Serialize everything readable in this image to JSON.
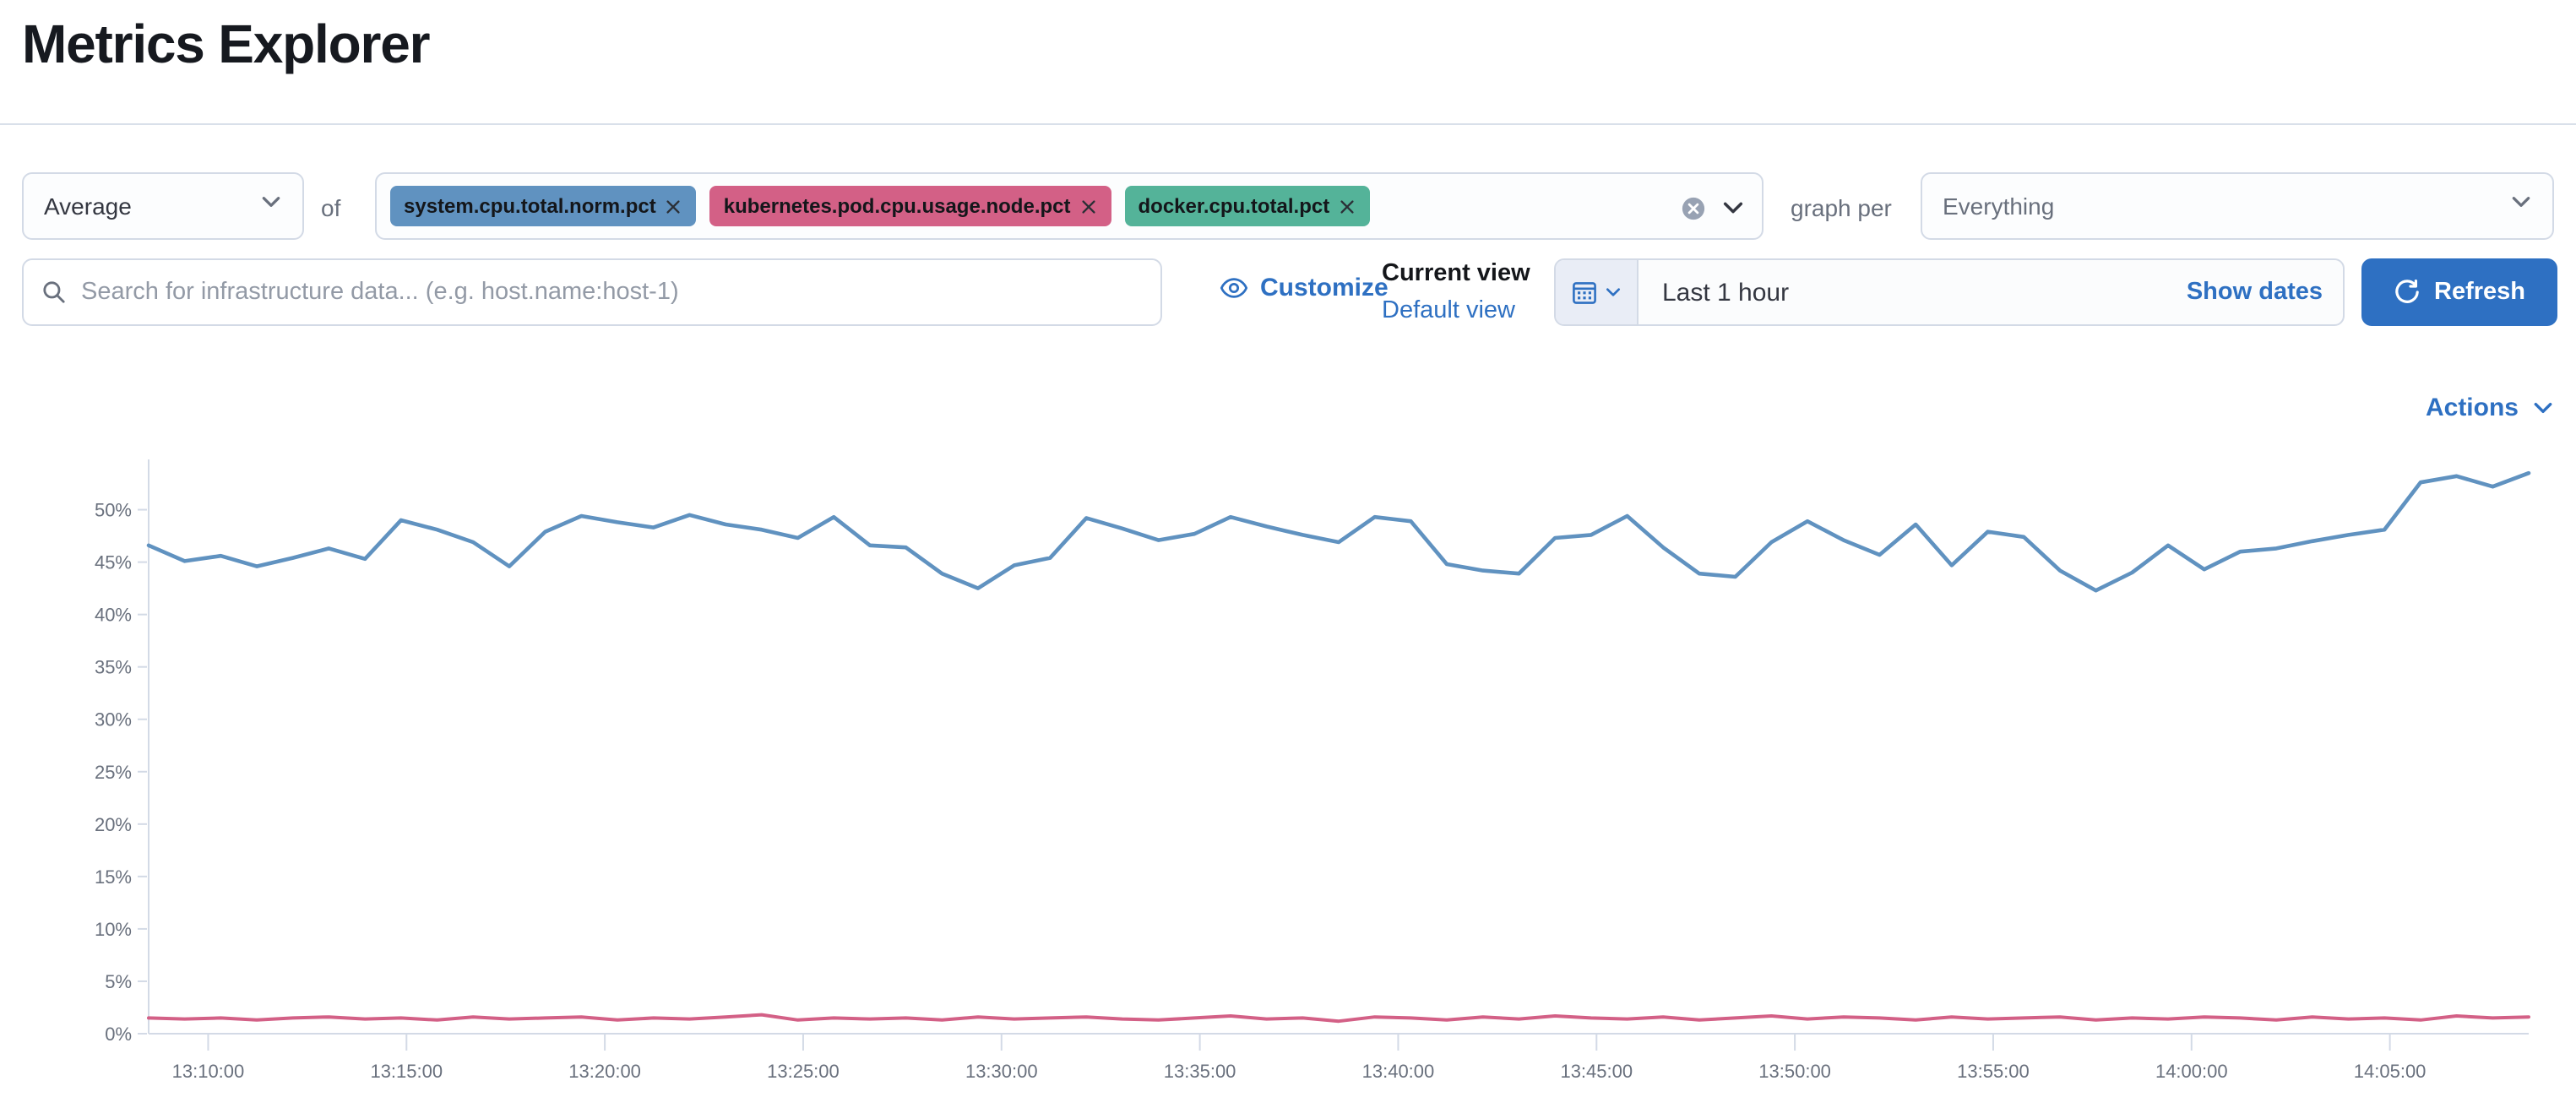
{
  "page": {
    "title": "Metrics Explorer"
  },
  "toolbar": {
    "aggregation_value": "Average",
    "of_label": "of",
    "metrics": [
      {
        "label": "system.cpu.total.norm.pct",
        "color": "#6092c0"
      },
      {
        "label": "kubernetes.pod.cpu.usage.node.pct",
        "color": "#d36086"
      },
      {
        "label": "docker.cpu.total.pct",
        "color": "#54b399"
      }
    ],
    "graph_per_label": "graph per",
    "graph_per_value": "Everything"
  },
  "searchbar": {
    "placeholder": "Search for infrastructure data... (e.g. host.name:host-1)",
    "value": ""
  },
  "view_controls": {
    "customize_label": "Customize",
    "current_view_label": "Current view",
    "view_name": "Default view"
  },
  "datepicker": {
    "value": "Last 1 hour",
    "show_dates_label": "Show dates"
  },
  "refresh_label": "Refresh",
  "actions_label": "Actions",
  "colors": {
    "accent_blue": "#2e70c2",
    "axis_line": "#d3dae6",
    "axis_text": "#69707d",
    "tag_blue": "#6092c0",
    "tag_pink": "#d36086",
    "tag_green": "#54b399"
  },
  "chart_data": {
    "type": "line",
    "title": "",
    "xlabel": "",
    "ylabel": "",
    "y_unit": "%",
    "grid": false,
    "legend": "none",
    "x_domain": [
      "13:08:30",
      "14:08:30"
    ],
    "x_ticks": [
      "13:10:00",
      "13:15:00",
      "13:20:00",
      "13:25:00",
      "13:30:00",
      "13:35:00",
      "13:40:00",
      "13:45:00",
      "13:50:00",
      "13:55:00",
      "14:00:00",
      "14:05:00"
    ],
    "y_ticks": [
      "0%",
      "5%",
      "10%",
      "15%",
      "20%",
      "25%",
      "30%",
      "35%",
      "40%",
      "45%",
      "50%"
    ],
    "ylim": [
      0,
      54.8
    ],
    "series": [
      {
        "name": "system.cpu.total.norm.pct (blue line)",
        "color": "#6092c0",
        "values": [
          46.6,
          45.1,
          45.6,
          44.6,
          45.4,
          46.3,
          45.3,
          49.0,
          48.1,
          46.9,
          44.6,
          47.9,
          49.4,
          48.8,
          48.3,
          49.5,
          48.6,
          48.1,
          47.3,
          49.3,
          46.6,
          46.4,
          43.9,
          42.5,
          44.7,
          45.4,
          49.2,
          48.2,
          47.1,
          47.7,
          49.3,
          48.4,
          47.6,
          46.9,
          49.3,
          48.9,
          44.8,
          44.2,
          43.9,
          47.3,
          47.6,
          49.4,
          46.4,
          43.9,
          43.6,
          46.9,
          48.9,
          47.1,
          45.7,
          48.6,
          44.7,
          47.9,
          47.4,
          44.2,
          42.3,
          44.0,
          46.6,
          44.3,
          46.0,
          46.3,
          47.0,
          47.6,
          48.1,
          52.6,
          53.2,
          52.2,
          53.5
        ]
      },
      {
        "name": "kubernetes.pod.cpu.usage.node.pct (pink line)",
        "color": "#d36086",
        "values": [
          1.5,
          1.4,
          1.5,
          1.3,
          1.5,
          1.6,
          1.4,
          1.5,
          1.3,
          1.6,
          1.4,
          1.5,
          1.6,
          1.3,
          1.5,
          1.4,
          1.6,
          1.8,
          1.3,
          1.5,
          1.4,
          1.5,
          1.3,
          1.6,
          1.4,
          1.5,
          1.6,
          1.4,
          1.3,
          1.5,
          1.7,
          1.4,
          1.5,
          1.2,
          1.6,
          1.5,
          1.3,
          1.6,
          1.4,
          1.7,
          1.5,
          1.4,
          1.6,
          1.3,
          1.5,
          1.7,
          1.4,
          1.6,
          1.5,
          1.3,
          1.6,
          1.4,
          1.5,
          1.6,
          1.3,
          1.5,
          1.4,
          1.6,
          1.5,
          1.3,
          1.6,
          1.4,
          1.5,
          1.3,
          1.7,
          1.5,
          1.6
        ]
      }
    ]
  }
}
